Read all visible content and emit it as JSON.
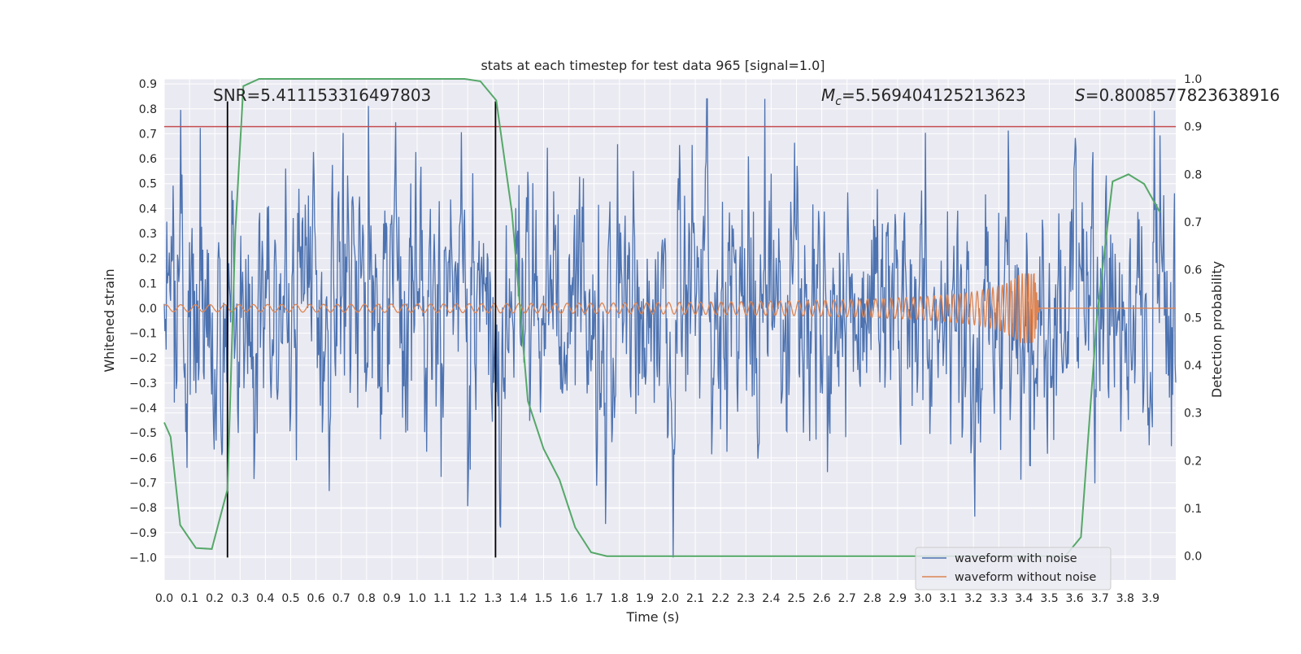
{
  "chart_data": {
    "type": "line",
    "title": "stats at each timestep for test data 965 [signal=1.0]",
    "xlabel": "Time (s)",
    "ylabel": "Whitened strain",
    "ylabel_right": "Detection probability",
    "xlim": [
      0.0,
      4.0
    ],
    "ylim": [
      -1.09,
      0.92
    ],
    "ylim_right": [
      -0.05,
      1.0
    ],
    "xticks": [
      "0.0",
      "0.1",
      "0.2",
      "0.3",
      "0.4",
      "0.5",
      "0.6",
      "0.7",
      "0.8",
      "0.9",
      "1.0",
      "1.1",
      "1.2",
      "1.3",
      "1.4",
      "1.5",
      "1.6",
      "1.7",
      "1.8",
      "1.9",
      "2.0",
      "2.1",
      "2.2",
      "2.3",
      "2.4",
      "2.5",
      "2.6",
      "2.7",
      "2.8",
      "2.9",
      "3.0",
      "3.1",
      "3.2",
      "3.3",
      "3.4",
      "3.5",
      "3.6",
      "3.7",
      "3.8",
      "3.9"
    ],
    "yticks": [
      "0.9",
      "0.8",
      "0.7",
      "0.6",
      "0.5",
      "0.4",
      "0.3",
      "0.2",
      "0.1",
      "0.0",
      "−0.1",
      "−0.2",
      "−0.3",
      "−0.4",
      "−0.5",
      "−0.6",
      "−0.7",
      "−0.8",
      "−0.9",
      "−1.0"
    ],
    "yticks_right": [
      "1.0",
      "0.9",
      "0.8",
      "0.7",
      "0.6",
      "0.5",
      "0.4",
      "0.3",
      "0.2",
      "0.1",
      "0.0"
    ],
    "annotations": {
      "snr": "SNR=5.411153316497803",
      "mc_symbol": "M",
      "mc_sub": "c",
      "mc_value": "=5.569404125213623",
      "s_symbol": "S",
      "s_value": "=0.8008577823638916"
    },
    "threshold_right": 0.9,
    "vlines": [
      0.25,
      1.31
    ],
    "detection_probability": {
      "x": [
        0.0,
        0.025,
        0.063,
        0.125,
        0.188,
        0.25,
        0.281,
        0.313,
        0.375,
        0.438,
        0.5,
        0.563,
        0.625,
        0.688,
        0.75,
        0.813,
        0.875,
        0.938,
        1.0,
        1.063,
        1.125,
        1.188,
        1.25,
        1.313,
        1.375,
        1.438,
        1.5,
        1.563,
        1.625,
        1.688,
        1.75,
        2.0,
        2.5,
        3.0,
        3.25,
        3.5,
        3.563,
        3.625,
        3.688,
        3.75,
        3.813,
        3.875,
        3.938
      ],
      "y": [
        0.28,
        0.25,
        0.065,
        0.017,
        0.015,
        0.14,
        0.68,
        0.985,
        1.0,
        1.0,
        1.0,
        1.0,
        1.0,
        1.0,
        1.0,
        1.0,
        1.0,
        1.0,
        1.0,
        1.0,
        1.0,
        1.0,
        0.995,
        0.955,
        0.72,
        0.325,
        0.225,
        0.16,
        0.06,
        0.008,
        0.0,
        0.0,
        0.0,
        0.0,
        0.0,
        0.0,
        0.0,
        0.04,
        0.5,
        0.785,
        0.8,
        0.78,
        0.72
      ]
    },
    "series": [
      {
        "name": "waveform with noise",
        "color": "#4c72b0",
        "description_stats": {
          "std": 0.22,
          "min": -1.0,
          "max": 0.84
        }
      },
      {
        "name": "waveform without noise",
        "color": "#dd8452",
        "merger_time": 3.44,
        "peak_amplitude": 0.14
      },
      {
        "name": "detection probability",
        "color": "#55a868"
      }
    ],
    "legend": [
      "waveform with noise",
      "waveform without noise"
    ],
    "legend_position": "lower-right",
    "colors": {
      "noise": "#4c72b0",
      "clean": "#dd8452",
      "prob": "#55a868",
      "threshold": "#c44e52",
      "vline": "#000000",
      "plot_bg": "#eaeaf2",
      "grid": "#ffffff",
      "text": "#262626"
    }
  }
}
